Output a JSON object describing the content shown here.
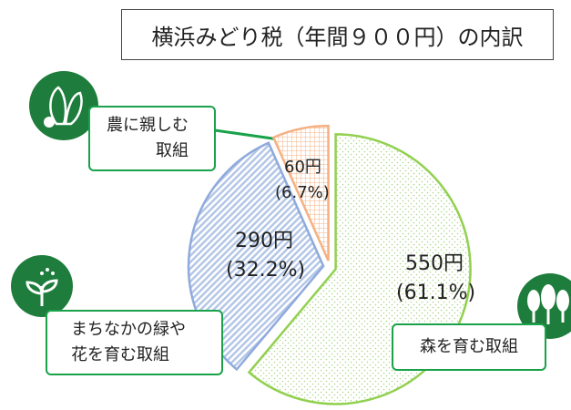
{
  "chart_data": {
    "type": "pie",
    "title": "横浜みどり税（年間９００円）の内訳",
    "categories": [
      "森を育む取組",
      "まちなかの緑や\n花を育む取組",
      "農に親しむ\n取組"
    ],
    "values": [
      550,
      290,
      60
    ],
    "value_labels": [
      "550円",
      "290円",
      "60円"
    ],
    "percents": [
      61.1,
      32.2,
      6.7
    ],
    "percent_labels": [
      "(61.1%)",
      "(32.2%)",
      "(6.7%)"
    ],
    "colors": [
      "#92d050",
      "#8faadc",
      "#f4b183"
    ]
  }
}
